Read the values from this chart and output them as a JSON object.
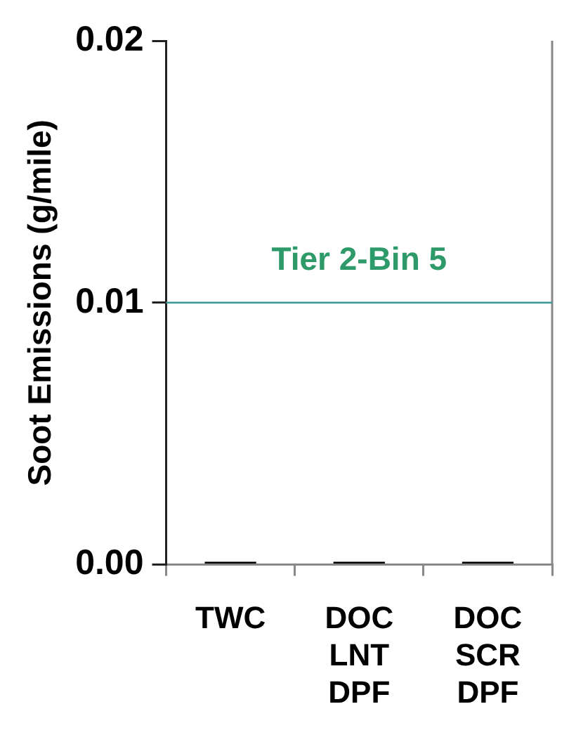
{
  "chart_data": {
    "type": "bar",
    "ylabel": "Soot Emissions (g/mile)",
    "categories": [
      "TWC",
      "DOC\nLNT\nDPF",
      "DOC\nSCR\nDPF"
    ],
    "values": [
      0.0001,
      0.0001,
      0.0001
    ],
    "color": "#000000",
    "ylim": [
      0,
      0.02
    ],
    "yticks": [
      {
        "value": 0,
        "label": "0.00"
      },
      {
        "value": 0.01,
        "label": "0.01"
      },
      {
        "value": 0.02,
        "label": "0.02"
      }
    ],
    "ref_lines": [
      {
        "axis": "y",
        "value": 0.01,
        "label": "Tier 2-Bin 5",
        "color": "#3a9a96"
      }
    ],
    "grid": false,
    "legend": false
  }
}
